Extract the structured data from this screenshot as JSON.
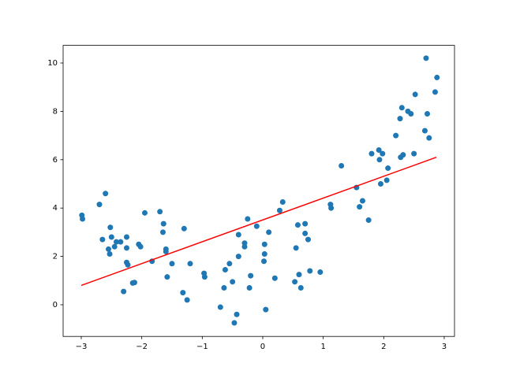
{
  "chart_data": {
    "type": "scatter",
    "xlim": [
      -3.3,
      3.17
    ],
    "ylim": [
      -1.31,
      10.73
    ],
    "xticks": [
      {
        "value": -3,
        "label": "−3"
      },
      {
        "value": -2,
        "label": "−2"
      },
      {
        "value": -1,
        "label": "−1"
      },
      0,
      1,
      2,
      3
    ],
    "yticks": [
      0,
      2,
      4,
      6,
      8,
      10
    ],
    "series": [
      {
        "type": "scatter",
        "color": "#1f77b4",
        "x": [
          -2.99,
          -2.98,
          -2.7,
          -2.65,
          -2.6,
          -2.55,
          -2.53,
          -2.52,
          -2.5,
          -2.45,
          -2.42,
          -2.35,
          -2.3,
          -2.25,
          -2.25,
          -2.25,
          -2.23,
          -2.15,
          -2.12,
          -2.05,
          -2.02,
          -1.95,
          -1.83,
          -1.7,
          -1.65,
          -1.64,
          -1.6,
          -1.6,
          -1.58,
          -1.5,
          -1.32,
          -1.3,
          -1.25,
          -1.2,
          -0.97,
          -0.96,
          -0.7,
          -0.64,
          -0.62,
          -0.55,
          -0.5,
          -0.47,
          -0.43,
          -0.4,
          -0.4,
          -0.3,
          -0.3,
          -0.25,
          -0.22,
          -0.2,
          -0.1,
          0.02,
          0.03,
          0.03,
          0.05,
          0.1,
          0.2,
          0.28,
          0.33,
          0.53,
          0.55,
          0.58,
          0.6,
          0.63,
          0.7,
          0.7,
          0.75,
          0.78,
          0.95,
          1.12,
          1.13,
          1.3,
          1.55,
          1.6,
          1.65,
          1.75,
          1.8,
          1.92,
          1.93,
          1.95,
          1.98,
          2.05,
          2.07,
          2.2,
          2.27,
          2.3,
          2.28,
          2.32,
          2.4,
          2.45,
          2.5,
          2.52,
          2.68,
          2.7,
          2.72,
          2.75,
          2.85,
          2.88
        ],
        "values": [
          3.7,
          3.55,
          4.15,
          2.7,
          4.6,
          2.3,
          2.1,
          3.2,
          2.8,
          2.4,
          2.6,
          2.6,
          0.55,
          2.35,
          2.8,
          1.75,
          1.65,
          0.9,
          0.92,
          2.5,
          2.4,
          3.8,
          1.8,
          3.85,
          3.0,
          3.35,
          2.3,
          2.2,
          1.15,
          1.7,
          0.5,
          3.15,
          0.2,
          1.7,
          1.3,
          1.15,
          -0.1,
          0.7,
          1.45,
          1.7,
          0.95,
          -0.75,
          -0.4,
          2.9,
          2.0,
          2.4,
          2.55,
          3.55,
          0.7,
          1.2,
          3.25,
          1.8,
          2.5,
          2.1,
          -0.2,
          3.0,
          1.1,
          3.9,
          4.25,
          0.95,
          2.35,
          3.3,
          1.25,
          0.7,
          3.35,
          2.95,
          2.7,
          1.4,
          1.35,
          4.15,
          4.0,
          5.75,
          4.85,
          4.05,
          4.3,
          3.5,
          6.25,
          6.4,
          6.0,
          5.0,
          6.25,
          5.15,
          5.65,
          7.0,
          7.7,
          8.15,
          6.1,
          6.2,
          8.0,
          7.9,
          6.25,
          8.7,
          7.2,
          10.2,
          7.9,
          6.9,
          8.8,
          9.4
        ]
      },
      {
        "type": "line",
        "color": "#ff0000",
        "x": [
          -3,
          2.87
        ],
        "values": [
          0.8,
          6.1
        ]
      }
    ]
  }
}
